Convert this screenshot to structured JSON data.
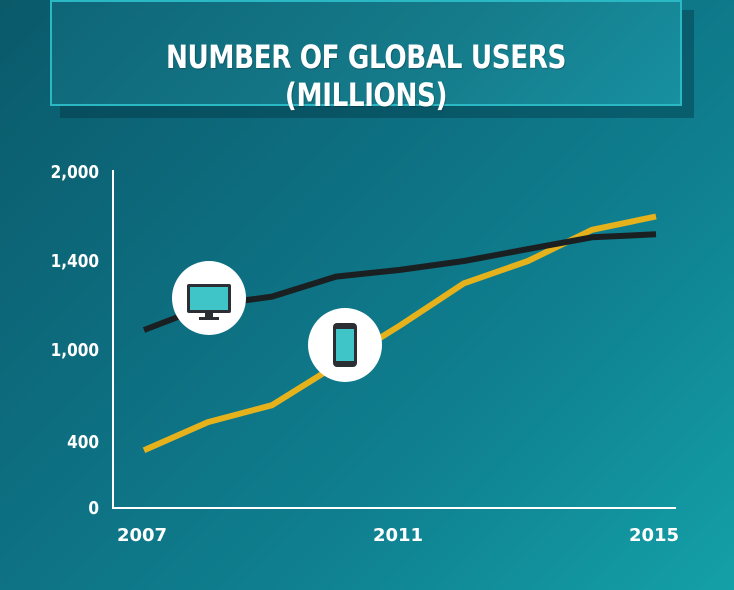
{
  "title": "NUMBER OF GLOBAL USERS (MILLIONS)",
  "colors": {
    "desktop_line": "#1a1f22",
    "mobile_line": "#e6b21c",
    "axis": "#ffffff",
    "icon_screen": "#3fc4c8"
  },
  "icons": [
    "monitor-icon",
    "smartphone-icon"
  ],
  "chart_data": {
    "type": "line",
    "title": "NUMBER OF GLOBAL USERS (MILLIONS)",
    "xlabel": "",
    "ylabel": "",
    "x": [
      2007,
      2008,
      2009,
      2010,
      2011,
      2012,
      2013,
      2014,
      2015
    ],
    "x_tick_labels": [
      "2007",
      "2011",
      "2015"
    ],
    "y_tick_labels": [
      "2,000",
      "1,400",
      "1,000",
      "400",
      "0"
    ],
    "y_tick_values": [
      2000,
      1400,
      1000,
      400,
      0
    ],
    "grid": false,
    "legend": "icons",
    "series": [
      {
        "icon": "monitor-icon",
        "values": [
          1090,
          1200,
          1240,
          1330,
          1360,
          1400,
          1480,
          1560,
          1580
        ]
      },
      {
        "icon": "smartphone-icon",
        "values": [
          350,
          530,
          640,
          900,
          1110,
          1300,
          1400,
          1610,
          1700
        ]
      }
    ]
  }
}
